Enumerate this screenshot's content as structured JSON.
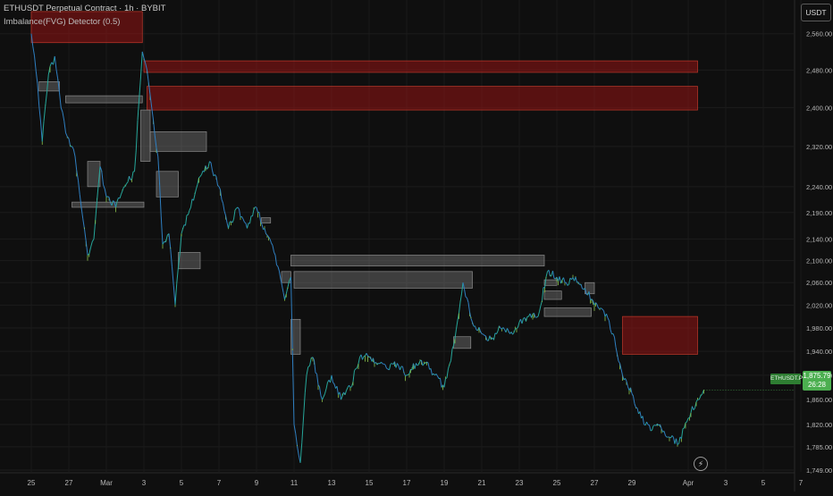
{
  "header": {
    "title": "ETHUSDT Perpetual Contract · 1h · BYBIT",
    "indicator": "Imbalance(FVG) Detector (0.5)"
  },
  "price_axis": {
    "currency": "USDT",
    "last_symbol": "ETHUSDT.P",
    "last_price": "1,875.79",
    "countdown": "26:28"
  },
  "chart_data": {
    "type": "candlestick",
    "symbol": "ETHUSDT Perpetual Contract",
    "interval": "1h",
    "exchange": "BYBIT",
    "y_scale": "log",
    "ylim": [
      1730,
      2620
    ],
    "y_ticks": [
      {
        "value": 2560,
        "label": "2,560.00"
      },
      {
        "value": 2480,
        "label": "2,480.00"
      },
      {
        "value": 2400,
        "label": "2,400.00"
      },
      {
        "value": 2320,
        "label": "2,320.00"
      },
      {
        "value": 2240,
        "label": "2,240.00"
      },
      {
        "value": 2190,
        "label": "2,190.00"
      },
      {
        "value": 2140,
        "label": "2,140.00"
      },
      {
        "value": 2100,
        "label": "2,100.00"
      },
      {
        "value": 2060,
        "label": "2,060.00"
      },
      {
        "value": 2020,
        "label": "2,020.00"
      },
      {
        "value": 1980,
        "label": "1,980.00"
      },
      {
        "value": 1940,
        "label": "1,940.00"
      },
      {
        "value": 1900,
        "label": "1,900.00"
      },
      {
        "value": 1860,
        "label": "1,860.00"
      },
      {
        "value": 1820,
        "label": "1,820.00"
      },
      {
        "value": 1785,
        "label": "1,785.00"
      },
      {
        "value": 1749,
        "label": "1,749.00"
      }
    ],
    "x_range": [
      "2025-02-25",
      "2025-04-07"
    ],
    "x_ticks": [
      {
        "date": "2025-02-25",
        "label": "25"
      },
      {
        "date": "2025-02-27",
        "label": "27"
      },
      {
        "date": "2025-03-01",
        "label": "Mar"
      },
      {
        "date": "2025-03-03",
        "label": "3"
      },
      {
        "date": "2025-03-05",
        "label": "5"
      },
      {
        "date": "2025-03-07",
        "label": "7"
      },
      {
        "date": "2025-03-09",
        "label": "9"
      },
      {
        "date": "2025-03-11",
        "label": "11"
      },
      {
        "date": "2025-03-13",
        "label": "13"
      },
      {
        "date": "2025-03-15",
        "label": "15"
      },
      {
        "date": "2025-03-17",
        "label": "17"
      },
      {
        "date": "2025-03-19",
        "label": "19"
      },
      {
        "date": "2025-03-21",
        "label": "21"
      },
      {
        "date": "2025-03-23",
        "label": "23"
      },
      {
        "date": "2025-03-25",
        "label": "25"
      },
      {
        "date": "2025-03-27",
        "label": "27"
      },
      {
        "date": "2025-03-29",
        "label": "29"
      },
      {
        "date": "2025-04-01",
        "label": "Apr"
      },
      {
        "date": "2025-04-03",
        "label": "3"
      },
      {
        "date": "2025-04-05",
        "label": "5"
      },
      {
        "date": "2025-04-07",
        "label": "7"
      }
    ],
    "price_path": [
      [
        "2025-02-25T00:00",
        2560
      ],
      [
        "2025-02-25T08:00",
        2450
      ],
      [
        "2025-02-25T14:00",
        2330
      ],
      [
        "2025-02-25T22:00",
        2470
      ],
      [
        "2025-02-26T06:00",
        2510
      ],
      [
        "2025-02-26T14:00",
        2400
      ],
      [
        "2025-02-26T22:00",
        2340
      ],
      [
        "2025-02-27T08:00",
        2300
      ],
      [
        "2025-02-27T16:00",
        2200
      ],
      [
        "2025-02-28T00:00",
        2110
      ],
      [
        "2025-02-28T08:00",
        2140
      ],
      [
        "2025-02-28T16:00",
        2280
      ],
      [
        "2025-03-01T00:00",
        2220
      ],
      [
        "2025-03-01T12:00",
        2200
      ],
      [
        "2025-03-02T00:00",
        2240
      ],
      [
        "2025-03-02T12:00",
        2270
      ],
      [
        "2025-03-02T22:00",
        2520
      ],
      [
        "2025-03-03T04:00",
        2480
      ],
      [
        "2025-03-03T10:00",
        2400
      ],
      [
        "2025-03-03T18:00",
        2300
      ],
      [
        "2025-03-04T00:00",
        2130
      ],
      [
        "2025-03-04T08:00",
        2150
      ],
      [
        "2025-03-04T16:00",
        2020
      ],
      [
        "2025-03-05T00:00",
        2150
      ],
      [
        "2025-03-05T12:00",
        2200
      ],
      [
        "2025-03-06T00:00",
        2260
      ],
      [
        "2025-03-06T12:00",
        2290
      ],
      [
        "2025-03-07T00:00",
        2240
      ],
      [
        "2025-03-07T12:00",
        2160
      ],
      [
        "2025-03-08T00:00",
        2200
      ],
      [
        "2025-03-08T12:00",
        2160
      ],
      [
        "2025-03-09T00:00",
        2200
      ],
      [
        "2025-03-09T12:00",
        2150
      ],
      [
        "2025-03-10T00:00",
        2110
      ],
      [
        "2025-03-10T12:00",
        2030
      ],
      [
        "2025-03-10T20:00",
        2070
      ],
      [
        "2025-03-11T00:00",
        1820
      ],
      [
        "2025-03-11T08:00",
        1760
      ],
      [
        "2025-03-11T16:00",
        1900
      ],
      [
        "2025-03-12T00:00",
        1930
      ],
      [
        "2025-03-12T12:00",
        1860
      ],
      [
        "2025-03-13T00:00",
        1900
      ],
      [
        "2025-03-13T12:00",
        1860
      ],
      [
        "2025-03-14T00:00",
        1880
      ],
      [
        "2025-03-14T12:00",
        1930
      ],
      [
        "2025-03-15T00:00",
        1930
      ],
      [
        "2025-03-15T12:00",
        1920
      ],
      [
        "2025-03-16T00:00",
        1910
      ],
      [
        "2025-03-16T12:00",
        1920
      ],
      [
        "2025-03-17T00:00",
        1900
      ],
      [
        "2025-03-17T12:00",
        1920
      ],
      [
        "2025-03-18T00:00",
        1920
      ],
      [
        "2025-03-18T12:00",
        1900
      ],
      [
        "2025-03-19T00:00",
        1880
      ],
      [
        "2025-03-19T12:00",
        1950
      ],
      [
        "2025-03-20T00:00",
        2060
      ],
      [
        "2025-03-20T12:00",
        1990
      ],
      [
        "2025-03-21T00:00",
        1970
      ],
      [
        "2025-03-21T12:00",
        1960
      ],
      [
        "2025-03-22T00:00",
        1980
      ],
      [
        "2025-03-22T12:00",
        1970
      ],
      [
        "2025-03-23T00:00",
        1990
      ],
      [
        "2025-03-23T12:00",
        2000
      ],
      [
        "2025-03-24T00:00",
        2000
      ],
      [
        "2025-03-24T12:00",
        2080
      ],
      [
        "2025-03-25T00:00",
        2070
      ],
      [
        "2025-03-25T12:00",
        2060
      ],
      [
        "2025-03-26T00:00",
        2070
      ],
      [
        "2025-03-26T12:00",
        2050
      ],
      [
        "2025-03-27T00:00",
        2020
      ],
      [
        "2025-03-27T12:00",
        2010
      ],
      [
        "2025-03-28T00:00",
        1970
      ],
      [
        "2025-03-28T12:00",
        1900
      ],
      [
        "2025-03-29T00:00",
        1870
      ],
      [
        "2025-03-29T12:00",
        1830
      ],
      [
        "2025-03-30T00:00",
        1810
      ],
      [
        "2025-03-30T12:00",
        1820
      ],
      [
        "2025-03-31T00:00",
        1800
      ],
      [
        "2025-03-31T12:00",
        1790
      ],
      [
        "2025-04-01T00:00",
        1830
      ],
      [
        "2025-04-01T12:00",
        1860
      ],
      [
        "2025-04-01T20:00",
        1876
      ]
    ],
    "fvg_zones": [
      {
        "from": "2025-02-25T00:00",
        "to": "2025-03-02T22:00",
        "top": 2610,
        "bottom": 2540,
        "kind": "bearish"
      },
      {
        "from": "2025-03-03T00:00",
        "to": "2025-04-01T12:00",
        "top": 2500,
        "bottom": 2475,
        "kind": "bearish"
      },
      {
        "from": "2025-03-03T04:00",
        "to": "2025-04-01T12:00",
        "top": 2445,
        "bottom": 2395,
        "kind": "bearish"
      },
      {
        "from": "2025-02-25T10:00",
        "to": "2025-02-26T12:00",
        "top": 2455,
        "bottom": 2435,
        "kind": "neutral"
      },
      {
        "from": "2025-02-26T20:00",
        "to": "2025-03-02T22:00",
        "top": 2425,
        "bottom": 2410,
        "kind": "neutral"
      },
      {
        "from": "2025-03-02T20:00",
        "to": "2025-03-03T08:00",
        "top": 2395,
        "bottom": 2290,
        "kind": "neutral"
      },
      {
        "from": "2025-03-03T08:00",
        "to": "2025-03-06T08:00",
        "top": 2350,
        "bottom": 2310,
        "kind": "neutral"
      },
      {
        "from": "2025-02-28T00:00",
        "to": "2025-02-28T16:00",
        "top": 2290,
        "bottom": 2240,
        "kind": "neutral"
      },
      {
        "from": "2025-02-27T04:00",
        "to": "2025-03-03T00:00",
        "top": 2210,
        "bottom": 2200,
        "kind": "neutral"
      },
      {
        "from": "2025-03-03T16:00",
        "to": "2025-03-04T20:00",
        "top": 2270,
        "bottom": 2220,
        "kind": "neutral"
      },
      {
        "from": "2025-03-04T20:00",
        "to": "2025-03-06T00:00",
        "top": 2115,
        "bottom": 2085,
        "kind": "neutral"
      },
      {
        "from": "2025-03-09T06:00",
        "to": "2025-03-09T18:00",
        "top": 2180,
        "bottom": 2170,
        "kind": "neutral"
      },
      {
        "from": "2025-03-10T20:00",
        "to": "2025-03-24T08:00",
        "top": 2110,
        "bottom": 2090,
        "kind": "neutral"
      },
      {
        "from": "2025-03-10T08:00",
        "to": "2025-03-10T20:00",
        "top": 2080,
        "bottom": 2060,
        "kind": "neutral"
      },
      {
        "from": "2025-03-11T00:00",
        "to": "2025-03-20T12:00",
        "top": 2080,
        "bottom": 2050,
        "kind": "neutral"
      },
      {
        "from": "2025-03-10T20:00",
        "to": "2025-03-11T08:00",
        "top": 1995,
        "bottom": 1935,
        "kind": "neutral"
      },
      {
        "from": "2025-03-19T12:00",
        "to": "2025-03-20T10:00",
        "top": 1965,
        "bottom": 1945,
        "kind": "neutral"
      },
      {
        "from": "2025-03-24T08:00",
        "to": "2025-03-25T00:00",
        "top": 2065,
        "bottom": 2055,
        "kind": "neutral"
      },
      {
        "from": "2025-03-24T08:00",
        "to": "2025-03-25T06:00",
        "top": 2045,
        "bottom": 2030,
        "kind": "neutral"
      },
      {
        "from": "2025-03-24T08:00",
        "to": "2025-03-26T20:00",
        "top": 2015,
        "bottom": 2000,
        "kind": "neutral"
      },
      {
        "from": "2025-03-26T12:00",
        "to": "2025-03-27T00:00",
        "top": 2060,
        "bottom": 2040,
        "kind": "neutral"
      },
      {
        "from": "2025-03-28T12:00",
        "to": "2025-04-01T12:00",
        "top": 2000,
        "bottom": 1935,
        "kind": "bearish"
      }
    ],
    "last_price": 1875.79
  }
}
